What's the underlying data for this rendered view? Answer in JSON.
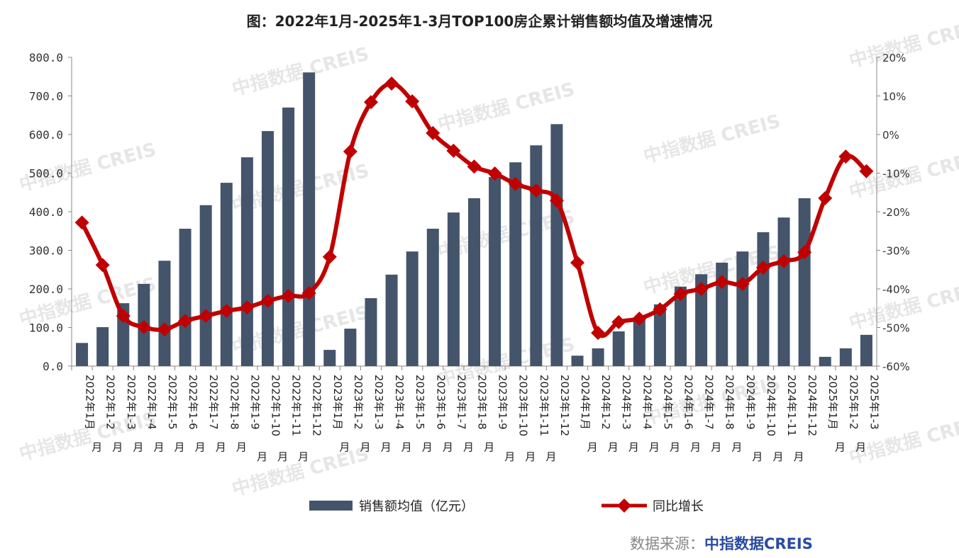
{
  "title": "图：2022年1月-2025年1-3月TOP100房企累计销售额均值及增速情况",
  "watermark": "中指数据 CREIS",
  "source": {
    "label": "数据来源：",
    "name": "中指数据CREIS"
  },
  "colors": {
    "bar": "#44546a",
    "line": "#c00000",
    "source": "#2b4aa0"
  },
  "chart_data": {
    "type": "bar+line",
    "categories": [
      "2022年1月",
      "2022年1-2月",
      "2022年1-3月",
      "2022年1-4月",
      "2022年1-5月",
      "2022年1-6月",
      "2022年1-7月",
      "2022年1-8月",
      "2022年1-9月",
      "2022年1-10月",
      "2022年1-11月",
      "2022年1-12月",
      "2023年1月",
      "2023年1-2月",
      "2023年1-3月",
      "2023年1-4月",
      "2023年1-5月",
      "2023年1-6月",
      "2023年1-7月",
      "2023年1-8月",
      "2023年1-9月",
      "2023年1-10月",
      "2023年1-11月",
      "2023年1-12月",
      "2024年1月",
      "2024年1-2月",
      "2024年1-3月",
      "2024年1-4月",
      "2024年1-5月",
      "2024年1-6月",
      "2024年1-7月",
      "2024年1-8月",
      "2024年1-9月",
      "2024年1-10月",
      "2024年1-11月",
      "2024年1-12月",
      "2025年1月",
      "2025年1-2月",
      "2025年1-3月"
    ],
    "series": [
      {
        "name": "销售额均值（亿元）",
        "type": "bar",
        "axis": "left",
        "values": [
          60,
          101,
          163,
          213,
          273,
          356,
          417,
          475,
          541,
          609,
          670,
          761,
          42,
          97,
          176,
          237,
          297,
          356,
          398,
          435,
          490,
          528,
          572,
          627,
          27,
          46,
          90,
          119,
          160,
          206,
          238,
          268,
          297,
          347,
          385,
          435,
          24,
          46,
          81
        ]
      },
      {
        "name": "同比增长",
        "type": "line",
        "axis": "right",
        "unit": "%",
        "values": [
          -22.8,
          -33.8,
          -47.0,
          -49.9,
          -50.5,
          -48.3,
          -47.0,
          -45.7,
          -44.8,
          -43.1,
          -41.8,
          -41.1,
          -31.7,
          -4.4,
          8.4,
          13.2,
          8.6,
          0.4,
          -4.2,
          -8.3,
          -10.1,
          -12.8,
          -14.5,
          -17.1,
          -33.2,
          -51.4,
          -48.6,
          -47.7,
          -45.3,
          -41.3,
          -40.0,
          -38.2,
          -38.7,
          -34.5,
          -32.8,
          -30.5,
          -16.5,
          -5.7,
          -9.5
        ]
      }
    ],
    "y_left": {
      "range": [
        0,
        800
      ],
      "ticks": [
        "0.0",
        "100.0",
        "200.0",
        "300.0",
        "400.0",
        "500.0",
        "600.0",
        "700.0",
        "800.0"
      ]
    },
    "y_right": {
      "range": [
        -60,
        20
      ],
      "ticks": [
        "-60%",
        "-50%",
        "-40%",
        "-30%",
        "-20%",
        "-10%",
        "0%",
        "10%",
        "20%"
      ]
    },
    "grid": false,
    "legend": "bottom"
  }
}
